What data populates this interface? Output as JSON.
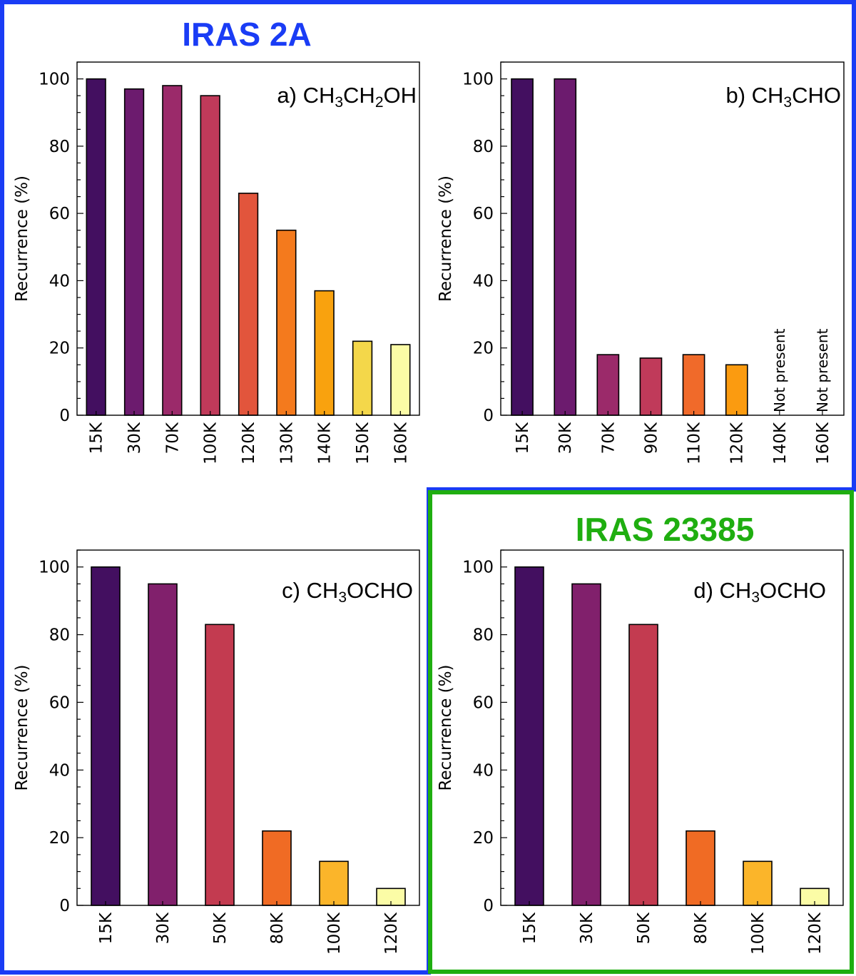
{
  "groups": [
    {
      "title": "IRAS 2A",
      "color": "#1a3cf5"
    },
    {
      "title": "IRAS 23385",
      "color": "#1fae10"
    }
  ],
  "chart_data": [
    {
      "type": "bar",
      "panel": "a",
      "label_prefix": "a) CH",
      "label_parts": [
        "a) CH",
        "3",
        "CH",
        "2",
        "OH"
      ],
      "categories": [
        "15K",
        "30K",
        "70K",
        "100K",
        "120K",
        "130K",
        "140K",
        "150K",
        "160K"
      ],
      "values": [
        100,
        97,
        98,
        95,
        66,
        55,
        37,
        22,
        21
      ],
      "colors": [
        "#430f60",
        "#6c1b6e",
        "#9b2a6a",
        "#c03a5a",
        "#e2553c",
        "#f47a1d",
        "#f9a20e",
        "#f4d74a",
        "#fbfca6"
      ],
      "ylabel": "Recurrence (%)",
      "yticks": [
        0,
        20,
        40,
        60,
        80,
        100
      ],
      "ylim": [
        0,
        105
      ]
    },
    {
      "type": "bar",
      "panel": "b",
      "label_parts": [
        "b) CH",
        "3",
        "CHO"
      ],
      "categories": [
        "15K",
        "30K",
        "70K",
        "90K",
        "110K",
        "120K",
        "140K",
        "160K"
      ],
      "values": [
        100,
        100,
        18,
        17,
        18,
        15,
        null,
        null
      ],
      "not_present_text": "Not present",
      "colors": [
        "#430f60",
        "#6c1b6e",
        "#9b2a6a",
        "#c03a5a",
        "#f06a2a",
        "#fb9b10",
        "#ffffff",
        "#ffffff"
      ],
      "ylabel": "Recurrence (%)",
      "yticks": [
        0,
        20,
        40,
        60,
        80,
        100
      ],
      "ylim": [
        0,
        105
      ]
    },
    {
      "type": "bar",
      "panel": "c",
      "label_parts": [
        "c) CH",
        "3",
        "OCHO"
      ],
      "categories": [
        "15K",
        "30K",
        "50K",
        "80K",
        "100K",
        "120K"
      ],
      "values": [
        100,
        95,
        83,
        22,
        13,
        5
      ],
      "colors": [
        "#430f60",
        "#81206c",
        "#c33b50",
        "#f06b24",
        "#fbb52a",
        "#fbfca6"
      ],
      "ylabel": "Recurrence (%)",
      "yticks": [
        0,
        20,
        40,
        60,
        80,
        100
      ],
      "ylim": [
        0,
        105
      ]
    },
    {
      "type": "bar",
      "panel": "d",
      "label_parts": [
        "d) CH",
        "3",
        "OCHO"
      ],
      "categories": [
        "15K",
        "30K",
        "50K",
        "80K",
        "100K",
        "120K"
      ],
      "values": [
        100,
        95,
        83,
        22,
        13,
        5
      ],
      "colors": [
        "#430f60",
        "#81206c",
        "#c33b50",
        "#f06b24",
        "#fbb52a",
        "#fbfca6"
      ],
      "ylabel": "Recurrence (%)",
      "yticks": [
        0,
        20,
        40,
        60,
        80,
        100
      ],
      "ylim": [
        0,
        105
      ]
    }
  ]
}
